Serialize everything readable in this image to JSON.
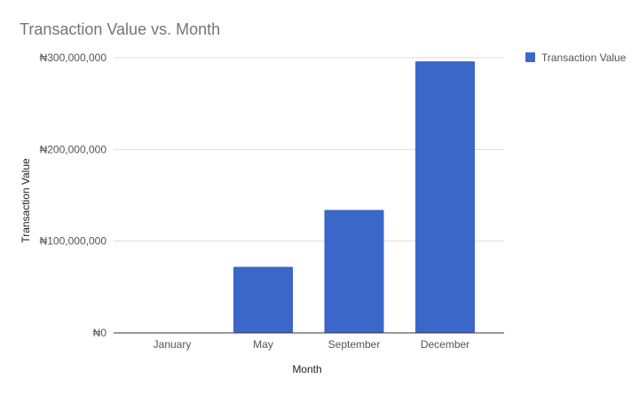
{
  "chart_data": {
    "type": "bar",
    "title": "Transaction Value vs. Month",
    "xlabel": "Month",
    "ylabel": "Transaction Value",
    "categories": [
      "January",
      "May",
      "September",
      "December"
    ],
    "series": [
      {
        "name": "Transaction Value",
        "values": [
          500000,
          72000000,
          134000000,
          296000000
        ],
        "color": "#3b67c8"
      }
    ],
    "ylim": [
      0,
      300000000
    ],
    "yticks": [
      0,
      100000000,
      200000000,
      300000000
    ],
    "ytick_labels": [
      "₦0",
      "₦100,000,000",
      "₦200,000,000",
      "₦300,000,000"
    ],
    "grid": true,
    "legend_position": "right"
  }
}
